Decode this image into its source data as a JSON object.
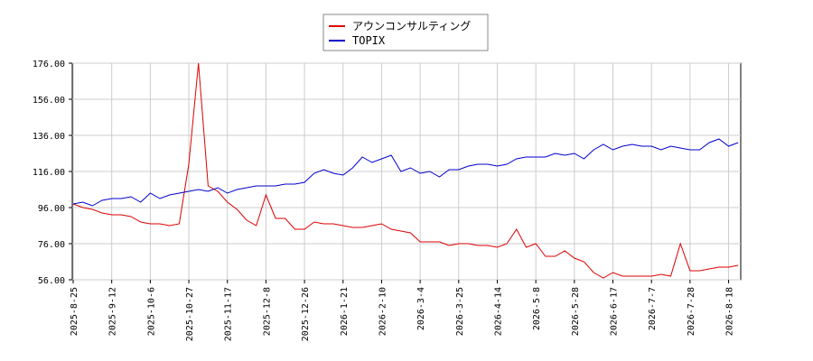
{
  "chart_data": {
    "type": "line",
    "categories": [
      "2025-8-25",
      null,
      null,
      null,
      "2025-9-12",
      null,
      null,
      null,
      "2025-10-6",
      null,
      null,
      null,
      "2025-10-27",
      null,
      null,
      null,
      "2025-11-17",
      null,
      null,
      null,
      "2025-12-8",
      null,
      null,
      null,
      "2025-12-26",
      null,
      null,
      null,
      "2026-1-21",
      null,
      null,
      null,
      "2026-2-10",
      null,
      null,
      null,
      "2026-3-4",
      null,
      null,
      null,
      "2026-3-25",
      null,
      null,
      null,
      "2026-4-14",
      null,
      null,
      null,
      "2026-5-8",
      null,
      null,
      null,
      "2026-5-28",
      null,
      null,
      null,
      "2026-6-17",
      null,
      null,
      null,
      "2026-7-7",
      null,
      null,
      null,
      "2026-7-28",
      null,
      null,
      null,
      "2026-8-18",
      null
    ],
    "series": [
      {
        "name": "アウンコンサルティング",
        "color": "#dd0000",
        "values": [
          98,
          96,
          95,
          93,
          92,
          92,
          91,
          88,
          87,
          87,
          86,
          87,
          120,
          176,
          108,
          105,
          99,
          95,
          89,
          86,
          103,
          90,
          90,
          84,
          84,
          88,
          87,
          87,
          86,
          85,
          85,
          86,
          87,
          84,
          83,
          82,
          77,
          77,
          77,
          75,
          76,
          76,
          75,
          75,
          74,
          76,
          84,
          74,
          76,
          69,
          69,
          72,
          68,
          66,
          60,
          57,
          60,
          58,
          58,
          58,
          58,
          59,
          58,
          76,
          61,
          61,
          62,
          63,
          63,
          64
        ]
      },
      {
        "name": "TOPIX",
        "color": "#0000cc",
        "values": [
          98,
          99,
          97,
          100,
          101,
          101,
          102,
          99,
          104,
          101,
          103,
          104,
          105,
          106,
          105,
          107,
          104,
          106,
          107,
          108,
          108,
          108,
          109,
          109,
          110,
          115,
          117,
          115,
          114,
          118,
          124,
          121,
          123,
          125,
          116,
          118,
          115,
          116,
          113,
          117,
          117,
          119,
          120,
          120,
          119,
          120,
          123,
          124,
          124,
          124,
          126,
          125,
          126,
          123,
          128,
          131,
          128,
          130,
          131,
          130,
          130,
          128,
          130,
          129,
          128,
          128,
          132,
          134,
          130,
          132
        ]
      }
    ],
    "ylim": [
      56,
      176
    ],
    "yticks": [
      {
        "value": 56,
        "label": "56.00"
      },
      {
        "value": 76,
        "label": "76.00"
      },
      {
        "value": 96,
        "label": "96.00"
      },
      {
        "value": 116,
        "label": "116.00"
      },
      {
        "value": 136,
        "label": "136.00"
      },
      {
        "value": 156,
        "label": "156.00"
      },
      {
        "value": 176,
        "label": "176.00"
      }
    ],
    "grid": true
  }
}
